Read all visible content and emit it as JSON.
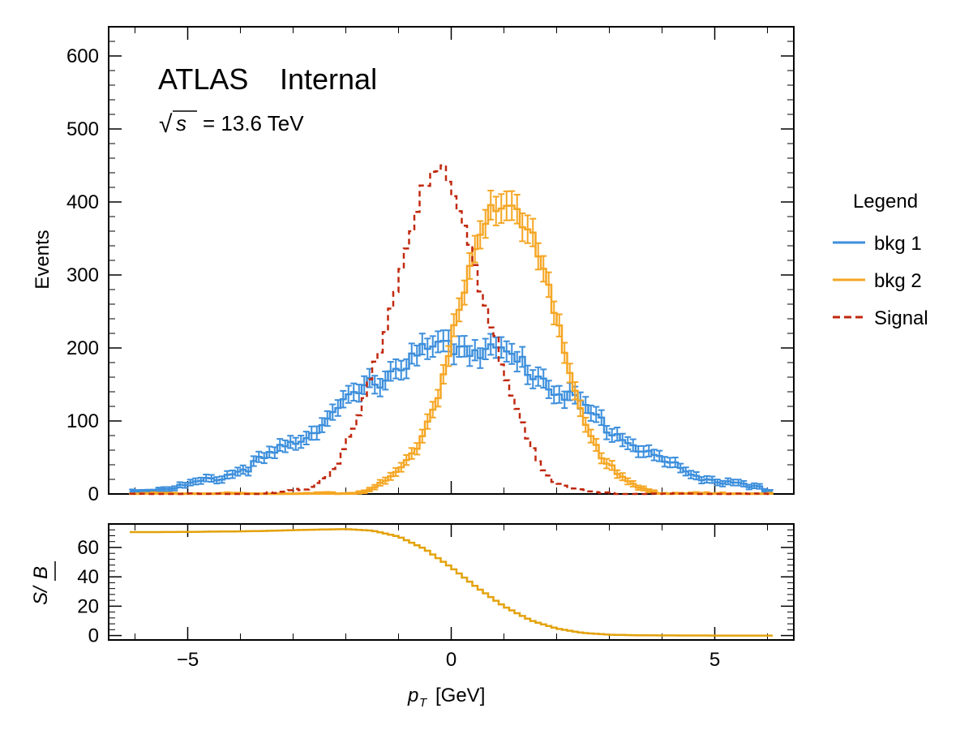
{
  "colors": {
    "bkg1": "#3d8fdc",
    "bkg2": "#f5a623",
    "signal": "#c0280e",
    "ratio": "#e3a20c",
    "frame": "#000000"
  },
  "chart_data": [
    {
      "type": "histogram",
      "panel": "main",
      "title": "",
      "brand": "ATLAS",
      "status": "Internal",
      "energy_label": "= 13.6 TeV",
      "energy_sqrt_symbol": "√",
      "energy_var": "s",
      "ylabel": "Events",
      "xlim": [
        -6.5,
        6.5
      ],
      "ylim": [
        0,
        640
      ],
      "yticks": [
        0,
        100,
        200,
        300,
        400,
        500,
        600
      ],
      "ytick_labels": [
        "0",
        "100",
        "200",
        "300",
        "400",
        "500",
        "600"
      ],
      "legend": {
        "title": "Legend",
        "location": "outside-right",
        "entries": [
          {
            "label": "bkg 1",
            "style": "solid",
            "color_key": "bkg1"
          },
          {
            "label": "bkg 2",
            "style": "solid",
            "color_key": "bkg2"
          },
          {
            "label": "Signal",
            "style": "dashed",
            "color_key": "signal"
          }
        ]
      },
      "binning": {
        "start": -6.1,
        "stop": 6.1,
        "nbins": 122
      },
      "series": [
        {
          "name": "bkg 1",
          "color_key": "bkg1",
          "style": "errorbar-step",
          "profile": {
            "kind": "gaussian",
            "peak": 203,
            "mean": 0.2,
            "sigma": 2.2
          },
          "values": [],
          "errors": []
        },
        {
          "name": "bkg 2",
          "color_key": "bkg2",
          "style": "errorbar-step",
          "profile": {
            "kind": "gaussian",
            "peak": 402,
            "mean": 1.05,
            "sigma": 0.9
          },
          "values": [],
          "errors": []
        },
        {
          "name": "Signal",
          "color_key": "signal",
          "style": "dashed-step",
          "profile": {
            "kind": "gaussian",
            "peak": 430,
            "mean": -0.25,
            "sigma": 0.9
          },
          "values": []
        }
      ]
    },
    {
      "type": "step",
      "panel": "ratio",
      "ylabel_numerator": "S/",
      "ylabel_denominator": "B",
      "xlabel_var": "p",
      "xlabel_sub": "T",
      "xlabel_unit": "[GeV]",
      "xlim": [
        -6.5,
        6.5
      ],
      "ylim": [
        -3,
        76
      ],
      "xticks": [
        -5,
        0,
        5
      ],
      "xtick_labels": [
        "−5",
        "0",
        "5"
      ],
      "yticks": [
        0,
        20,
        40,
        60
      ],
      "ytick_labels": [
        "0",
        "20",
        "40",
        "60"
      ],
      "series": [
        {
          "name": "S/√B",
          "color_key": "ratio",
          "x": [
            -6.1,
            -5.5,
            -5.0,
            -4.5,
            -4.0,
            -3.5,
            -3.0,
            -2.5,
            -2.0,
            -1.5,
            -1.0,
            -0.5,
            0.0,
            0.5,
            1.0,
            1.5,
            2.0,
            2.5,
            3.0,
            3.5,
            4.0,
            4.5,
            5.0,
            5.5,
            6.1
          ],
          "y": [
            70.5,
            70.5,
            70.6,
            70.8,
            71.0,
            71.3,
            71.8,
            72.2,
            72.5,
            71.5,
            67.5,
            59.0,
            46.5,
            32.5,
            20.0,
            10.5,
            4.8,
            1.8,
            0.6,
            0.2,
            0.1,
            0.05,
            0.0,
            0.0,
            0.0
          ]
        }
      ]
    }
  ]
}
